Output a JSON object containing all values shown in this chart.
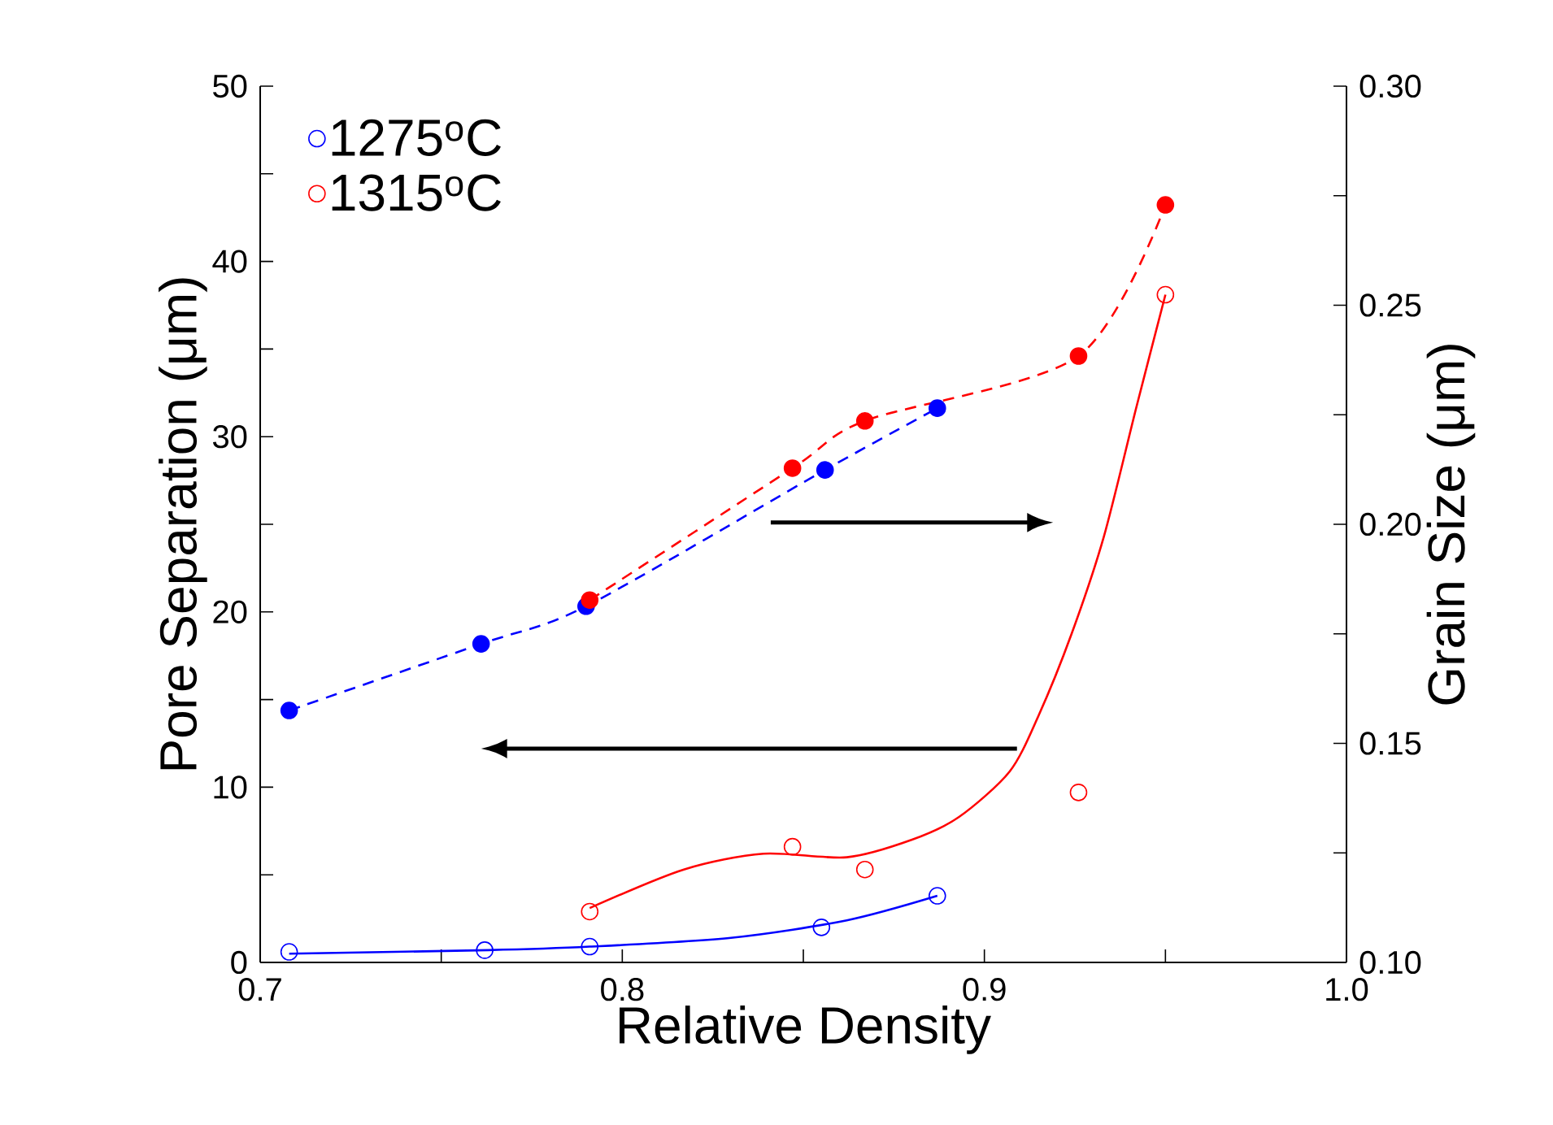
{
  "chart_data": {
    "type": "scatter",
    "xlabel": "Relative Density",
    "ylabel": "Pore Separation (μm)",
    "y2label": "Grain Size (μm)",
    "xlim": [
      0.7,
      1.0
    ],
    "xticks": [
      0.7,
      {
        "value": 0.75,
        "label": null
      },
      0.8,
      {
        "value": 0.85,
        "label": null
      },
      0.9,
      {
        "value": 0.95,
        "label": null
      },
      {
        "value": 1.0,
        "label": "1.0"
      }
    ],
    "ylim": [
      0,
      50
    ],
    "yticks": [
      0,
      {
        "value": 5,
        "label": null
      },
      10,
      {
        "value": 15,
        "label": null
      },
      20,
      {
        "value": 25,
        "label": null
      },
      30,
      {
        "value": 35,
        "label": null
      },
      40,
      {
        "value": 45,
        "label": null
      },
      50
    ],
    "y2lim": [
      0.1,
      0.3
    ],
    "y2ticks": [
      {
        "value": 0.1,
        "label": "0.10"
      },
      {
        "value": 0.125,
        "label": null
      },
      0.15,
      {
        "value": 0.175,
        "label": null
      },
      {
        "value": 0.2,
        "label": "0.20"
      },
      {
        "value": 0.225,
        "label": null
      },
      0.25,
      {
        "value": 0.275,
        "label": null
      },
      {
        "value": 0.3,
        "label": "0.30"
      }
    ],
    "legend": "top left",
    "grid": false,
    "series": [
      {
        "name": "1275$^{o}$C",
        "marker": "circle",
        "color": "#0000ff",
        "x": [
          0.708,
          0.762,
          0.791,
          0.855,
          0.887
        ],
        "values": [
          0.6,
          0.7,
          0.9,
          2.0,
          3.8
        ]
      },
      {
        "name": "1315$^{o}$C",
        "marker": "circle",
        "color": "#ff0000",
        "x": [
          0.791,
          0.847,
          0.867,
          0.926,
          0.95
        ],
        "values": [
          2.9,
          6.6,
          5.3,
          9.7,
          38.1
        ]
      },
      {
        "type": "line",
        "marker": "none",
        "line_style": "solid",
        "color": "#0000ff",
        "x": [
          0.708,
          0.763,
          0.791,
          0.83,
          0.862,
          0.887
        ],
        "values": [
          0.5,
          0.7,
          0.9,
          1.4,
          2.4,
          3.8
        ]
      },
      {
        "type": "line",
        "marker": "none",
        "line_style": "solid",
        "color": "#ff0000",
        "x": [
          0.791,
          0.817,
          0.839,
          0.862,
          0.88,
          0.893,
          0.907,
          0.915,
          0.924,
          0.933,
          0.942,
          0.95
        ],
        "values": [
          3.1,
          5.3,
          6.2,
          6.0,
          7.0,
          8.3,
          10.9,
          14.1,
          18.7,
          24.3,
          31.7,
          38.1
        ]
      },
      {
        "type": "line",
        "axis": "y2",
        "marker": "circle",
        "line_style": "dashed",
        "color": "#0000ff",
        "x": [
          0.708,
          0.761,
          0.79,
          0.856,
          0.887
        ],
        "values": [
          0.1575,
          0.1727,
          0.1813,
          0.2124,
          0.2265
        ]
      },
      {
        "type": "line",
        "axis": "y2",
        "marker": "circle",
        "line_style": "dashed",
        "color": "#ff0000",
        "x": [
          0.791,
          0.847,
          0.867,
          0.926,
          0.95
        ],
        "values": [
          0.1827,
          0.2128,
          0.2236,
          0.2384,
          0.2729
        ]
      }
    ]
  }
}
